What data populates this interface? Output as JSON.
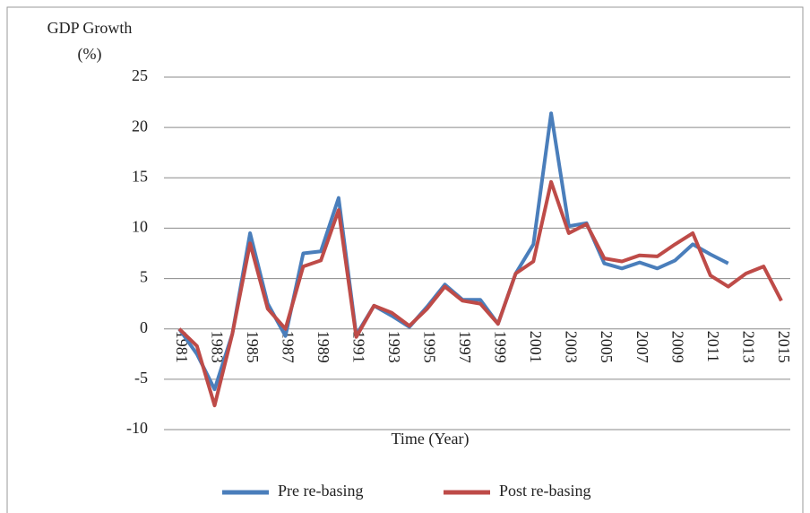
{
  "chart_data": {
    "type": "line",
    "title": "GDP Growth",
    "subtitle": "(%)",
    "x_label": "Time (Year)",
    "categories": [
      "1981",
      null,
      "1983",
      null,
      "1985",
      null,
      "1987",
      null,
      "1989",
      null,
      "1991",
      null,
      "1993",
      null,
      "1995",
      null,
      "1997",
      null,
      "1999",
      null,
      "2001",
      null,
      "2003",
      null,
      "2005",
      null,
      "2007",
      null,
      "2009",
      null,
      "2011",
      null,
      "2013",
      null,
      "2015"
    ],
    "series": [
      {
        "name": "Pre re-basing",
        "color": "#4a7ebb",
        "values": [
          0,
          -2.5,
          -6.0,
          -0.5,
          9.5,
          2.5,
          -0.7,
          7.5,
          7.7,
          13.0,
          -0.6,
          2.3,
          1.3,
          0.2,
          2.2,
          4.4,
          2.9,
          2.9,
          0.5,
          5.5,
          8.4,
          21.4,
          10.2,
          10.5,
          6.5,
          6.0,
          6.6,
          6.0,
          6.8,
          8.4,
          7.4,
          6.5,
          null,
          null,
          null
        ]
      },
      {
        "name": "Post re-basing",
        "color": "#be4b48",
        "values": [
          0,
          -1.7,
          -7.6,
          -0.5,
          8.5,
          2.0,
          0,
          6.2,
          6.8,
          11.8,
          -0.8,
          2.3,
          1.6,
          0.3,
          2.0,
          4.2,
          2.8,
          2.5,
          0.5,
          5.5,
          6.7,
          14.6,
          9.5,
          10.4,
          7.0,
          6.7,
          7.3,
          7.2,
          8.4,
          9.5,
          5.3,
          4.2,
          5.5,
          6.2,
          2.8
        ]
      }
    ],
    "ylim": [
      -10,
      25
    ],
    "yticks": [
      -10,
      -5,
      0,
      5,
      10,
      15,
      20,
      25
    ],
    "grid": true,
    "legend": "bottom"
  }
}
